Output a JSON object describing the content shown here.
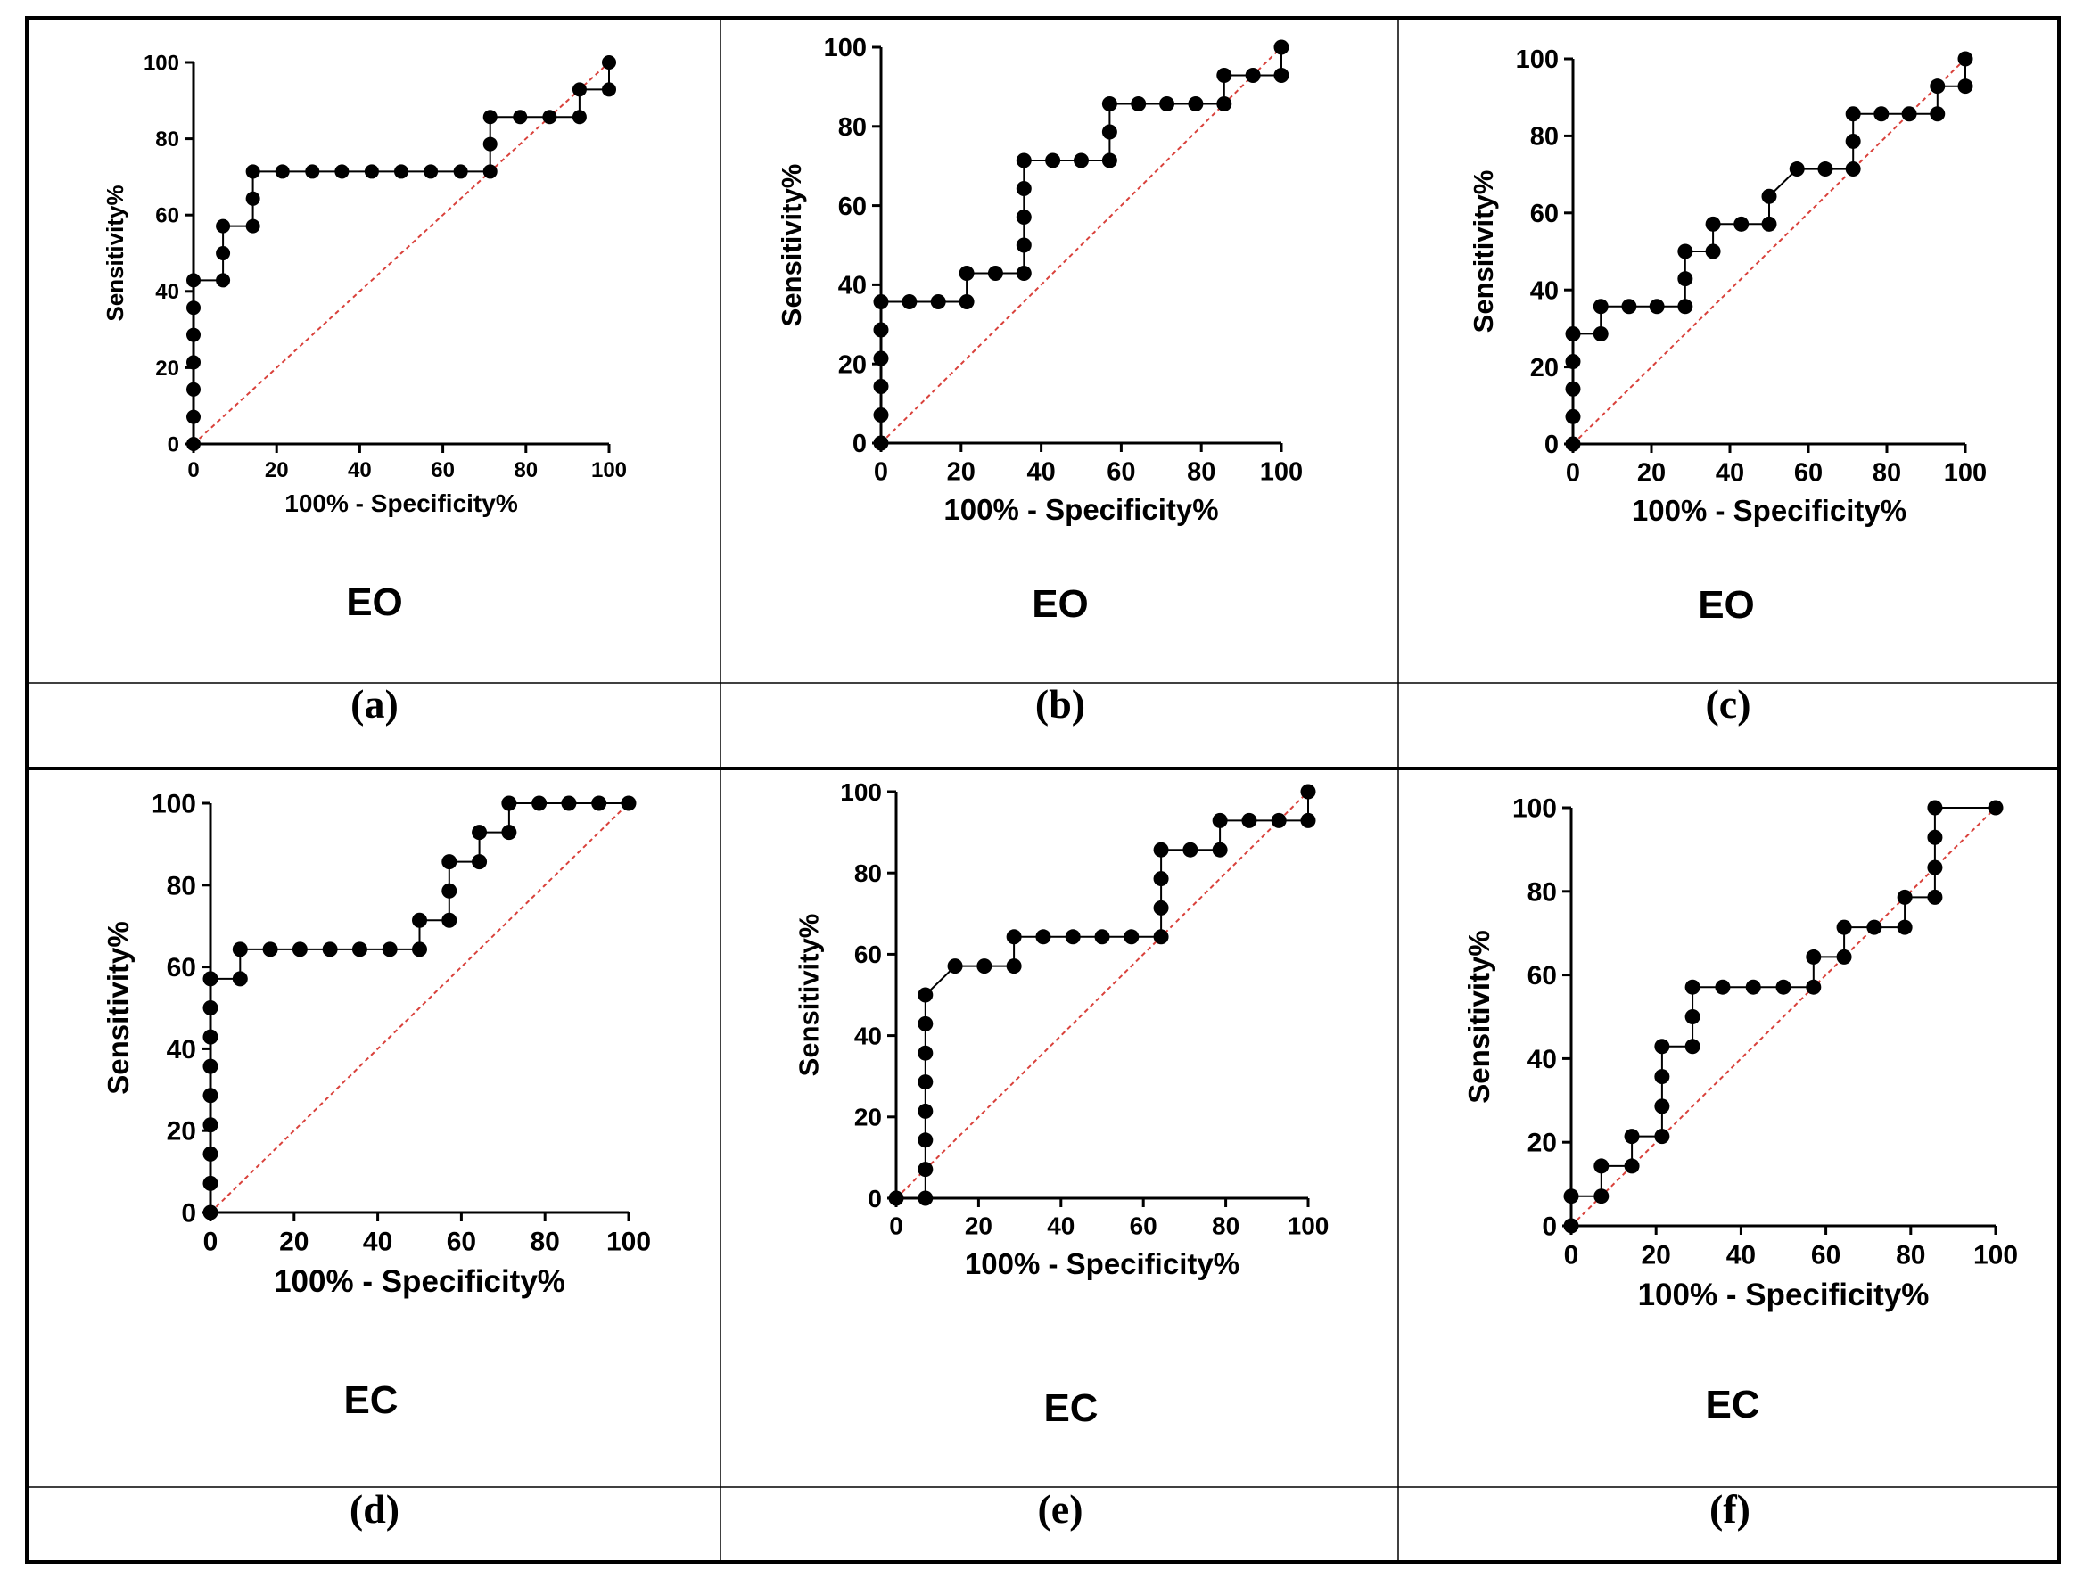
{
  "figure": {
    "panels": [
      {
        "id": "a",
        "caption": "(a)",
        "group": "EO"
      },
      {
        "id": "b",
        "caption": "(b)",
        "group": "EO"
      },
      {
        "id": "c",
        "caption": "(c)",
        "group": "EO"
      },
      {
        "id": "d",
        "caption": "(d)",
        "group": "EC"
      },
      {
        "id": "e",
        "caption": "(e)",
        "group": "EC"
      },
      {
        "id": "f",
        "caption": "(f)",
        "group": "EC"
      }
    ]
  },
  "colors": {
    "curve": "#000000",
    "reference_line": "#d9413b",
    "border": "#000000"
  },
  "chart_data": [
    {
      "type": "line",
      "panel": "a",
      "title": "EO",
      "xlabel": "100% - Specificity%",
      "ylabel": "Sensitivity%",
      "xlim": [
        0,
        100
      ],
      "ylim": [
        0,
        100
      ],
      "xticks": [
        0,
        20,
        40,
        60,
        80,
        100
      ],
      "yticks": [
        0,
        20,
        40,
        60,
        80,
        100
      ],
      "reference_line": "diagonal",
      "x": [
        0,
        0,
        0,
        0,
        0,
        0,
        0,
        7.1,
        7.1,
        7.1,
        14.3,
        14.3,
        14.3,
        21.4,
        28.6,
        35.7,
        42.9,
        50,
        57.1,
        64.3,
        71.4,
        71.4,
        71.4,
        78.6,
        85.7,
        92.9,
        92.9,
        100,
        100
      ],
      "y": [
        0,
        7.1,
        14.3,
        21.4,
        28.6,
        35.7,
        42.9,
        42.9,
        50,
        57.1,
        57.1,
        64.3,
        71.4,
        71.4,
        71.4,
        71.4,
        71.4,
        71.4,
        71.4,
        71.4,
        71.4,
        78.6,
        85.7,
        85.7,
        85.7,
        85.7,
        92.9,
        92.9,
        100
      ]
    },
    {
      "type": "line",
      "panel": "b",
      "title": "EO",
      "xlabel": "100% - Specificity%",
      "ylabel": "Sensitivity%",
      "xlim": [
        0,
        100
      ],
      "ylim": [
        0,
        100
      ],
      "xticks": [
        0,
        20,
        40,
        60,
        80,
        100
      ],
      "yticks": [
        0,
        20,
        40,
        60,
        80,
        100
      ],
      "reference_line": "diagonal",
      "x": [
        0,
        0,
        0,
        0,
        0,
        0,
        7.1,
        14.3,
        21.4,
        21.4,
        28.6,
        35.7,
        35.7,
        35.7,
        35.7,
        35.7,
        42.9,
        50,
        57.1,
        57.1,
        57.1,
        64.3,
        71.4,
        78.6,
        85.7,
        85.7,
        92.9,
        100,
        100
      ],
      "y": [
        0,
        7.1,
        14.3,
        21.4,
        28.6,
        35.7,
        35.7,
        35.7,
        35.7,
        42.9,
        42.9,
        42.9,
        50,
        57.1,
        64.3,
        71.4,
        71.4,
        71.4,
        71.4,
        78.6,
        85.7,
        85.7,
        85.7,
        85.7,
        85.7,
        92.9,
        92.9,
        92.9,
        100
      ]
    },
    {
      "type": "line",
      "panel": "c",
      "title": "EO",
      "xlabel": "100% - Specificity%",
      "ylabel": "Sensitivity%",
      "xlim": [
        0,
        100
      ],
      "ylim": [
        0,
        100
      ],
      "xticks": [
        0,
        20,
        40,
        60,
        80,
        100
      ],
      "yticks": [
        0,
        20,
        40,
        60,
        80,
        100
      ],
      "reference_line": "diagonal",
      "x": [
        0,
        0,
        0,
        0,
        0,
        7.1,
        7.1,
        14.3,
        21.4,
        28.6,
        28.6,
        28.6,
        35.7,
        35.7,
        42.9,
        50,
        50,
        57.1,
        64.3,
        71.4,
        71.4,
        71.4,
        78.6,
        85.7,
        92.9,
        92.9,
        100,
        100
      ],
      "y": [
        0,
        7.1,
        14.3,
        21.4,
        28.6,
        28.6,
        35.7,
        35.7,
        35.7,
        35.7,
        42.9,
        50,
        50,
        57.1,
        57.1,
        57.1,
        64.3,
        71.4,
        71.4,
        71.4,
        78.6,
        85.7,
        85.7,
        85.7,
        85.7,
        92.9,
        92.9,
        100
      ]
    },
    {
      "type": "line",
      "panel": "d",
      "title": "EC",
      "xlabel": "100% - Specificity%",
      "ylabel": "Sensitivity%",
      "xlim": [
        0,
        100
      ],
      "ylim": [
        0,
        100
      ],
      "xticks": [
        0,
        20,
        40,
        60,
        80,
        100
      ],
      "yticks": [
        0,
        20,
        40,
        60,
        80,
        100
      ],
      "reference_line": "diagonal",
      "x": [
        0,
        0,
        0,
        0,
        0,
        0,
        0,
        0,
        0,
        7.1,
        7.1,
        14.3,
        21.4,
        28.6,
        35.7,
        42.9,
        50,
        50,
        57.1,
        57.1,
        57.1,
        64.3,
        64.3,
        71.4,
        71.4,
        78.6,
        85.7,
        92.9,
        100
      ],
      "y": [
        0,
        7.1,
        14.3,
        21.4,
        28.6,
        35.7,
        42.9,
        50,
        57.1,
        57.1,
        64.3,
        64.3,
        64.3,
        64.3,
        64.3,
        64.3,
        64.3,
        71.4,
        71.4,
        78.6,
        85.7,
        85.7,
        92.9,
        92.9,
        100,
        100,
        100,
        100,
        100
      ]
    },
    {
      "type": "line",
      "panel": "e",
      "title": "EC",
      "xlabel": "100% - Specificity%",
      "ylabel": "Sensitivity%",
      "xlim": [
        0,
        100
      ],
      "ylim": [
        0,
        100
      ],
      "xticks": [
        0,
        20,
        40,
        60,
        80,
        100
      ],
      "yticks": [
        0,
        20,
        40,
        60,
        80,
        100
      ],
      "reference_line": "diagonal",
      "x": [
        0,
        7.1,
        7.1,
        7.1,
        7.1,
        7.1,
        7.1,
        7.1,
        7.1,
        14.3,
        21.4,
        28.6,
        28.6,
        35.7,
        42.9,
        50,
        57.1,
        64.3,
        64.3,
        64.3,
        64.3,
        71.4,
        78.6,
        78.6,
        85.7,
        92.9,
        100,
        100
      ],
      "y": [
        0,
        0,
        7.1,
        14.3,
        21.4,
        28.6,
        35.7,
        42.9,
        50,
        57.1,
        57.1,
        57.1,
        64.3,
        64.3,
        64.3,
        64.3,
        64.3,
        64.3,
        71.4,
        78.6,
        85.7,
        85.7,
        85.7,
        92.9,
        92.9,
        92.9,
        92.9,
        100
      ]
    },
    {
      "type": "line",
      "panel": "f",
      "title": "EC",
      "xlabel": "100% - Specificity%",
      "ylabel": "Sensitivity%",
      "xlim": [
        0,
        100
      ],
      "ylim": [
        0,
        100
      ],
      "xticks": [
        0,
        20,
        40,
        60,
        80,
        100
      ],
      "yticks": [
        0,
        20,
        40,
        60,
        80,
        100
      ],
      "reference_line": "diagonal",
      "x": [
        0,
        0,
        7.1,
        7.1,
        14.3,
        14.3,
        21.4,
        21.4,
        21.4,
        21.4,
        28.6,
        28.6,
        28.6,
        35.7,
        42.9,
        50,
        57.1,
        57.1,
        64.3,
        64.3,
        71.4,
        78.6,
        78.6,
        85.7,
        85.7,
        85.7,
        85.7,
        100
      ],
      "y": [
        0,
        7.1,
        7.1,
        14.3,
        14.3,
        21.4,
        21.4,
        28.6,
        35.7,
        42.9,
        42.9,
        50,
        57.1,
        57.1,
        57.1,
        57.1,
        57.1,
        64.3,
        64.3,
        71.4,
        71.4,
        71.4,
        78.6,
        78.6,
        85.7,
        92.9,
        100,
        100
      ]
    }
  ]
}
